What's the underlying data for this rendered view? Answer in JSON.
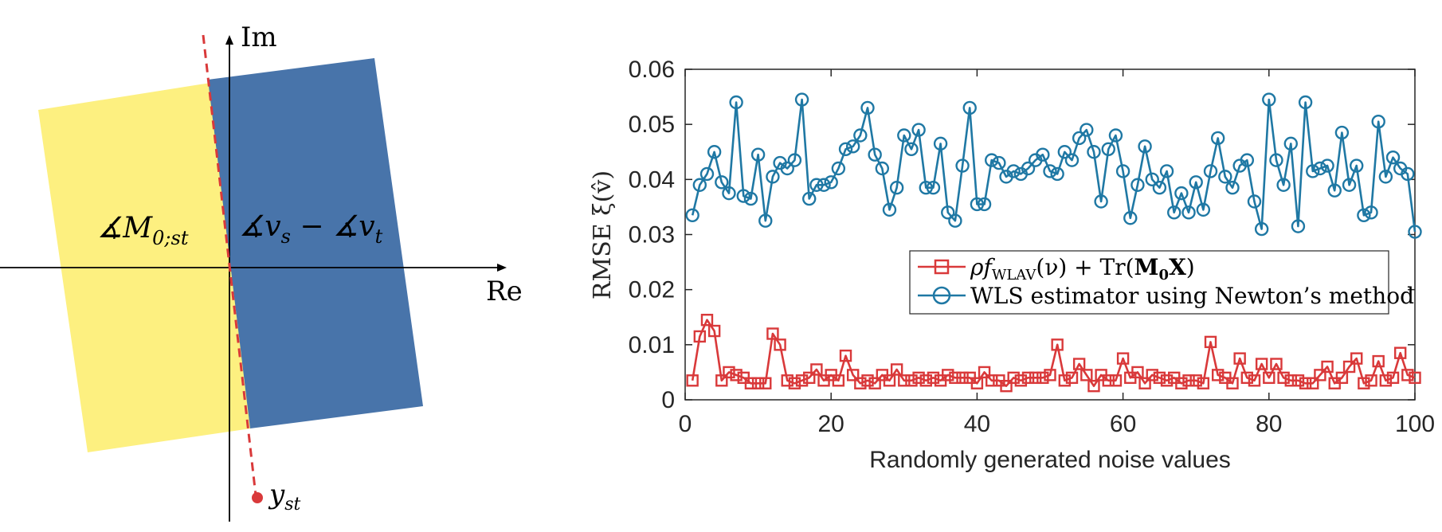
{
  "diagram": {
    "real_axis_label": "Re",
    "imag_axis_label": "Im",
    "left_region_label": "∡M",
    "left_region_sub": "0;st",
    "right_region_label": "∡v",
    "right_region_sub1": "s",
    "right_region_mid": " − ∡v",
    "right_region_sub2": "t",
    "point_label": "y",
    "point_sub": "st",
    "colors": {
      "left_region": "#fdf080",
      "right_region": "#4874aa",
      "dashed_line": "#d9393a",
      "axes": "#000000"
    }
  },
  "chart_data": {
    "type": "line",
    "xlabel": "Randomly generated noise values",
    "ylabel": "RMSE ξ(v̂)",
    "xlim": [
      0,
      100
    ],
    "ylim": [
      0,
      0.06
    ],
    "xticks": [
      0,
      20,
      40,
      60,
      80,
      100
    ],
    "yticks": [
      0,
      0.01,
      0.02,
      0.03,
      0.04,
      0.05,
      0.06
    ],
    "xtick_labels": [
      "0",
      "20",
      "40",
      "60",
      "80",
      "100"
    ],
    "ytick_labels": [
      "0",
      "0.01",
      "0.02",
      "0.03",
      "0.04",
      "0.05",
      "0.06"
    ],
    "legend_position": "center-right",
    "x": [
      1,
      2,
      3,
      4,
      5,
      6,
      7,
      8,
      9,
      10,
      11,
      12,
      13,
      14,
      15,
      16,
      17,
      18,
      19,
      20,
      21,
      22,
      23,
      24,
      25,
      26,
      27,
      28,
      29,
      30,
      31,
      32,
      33,
      34,
      35,
      36,
      37,
      38,
      39,
      40,
      41,
      42,
      43,
      44,
      45,
      46,
      47,
      48,
      49,
      50,
      51,
      52,
      53,
      54,
      55,
      56,
      57,
      58,
      59,
      60,
      61,
      62,
      63,
      64,
      65,
      66,
      67,
      68,
      69,
      70,
      71,
      72,
      73,
      74,
      75,
      76,
      77,
      78,
      79,
      80,
      81,
      82,
      83,
      84,
      85,
      86,
      87,
      88,
      89,
      90,
      91,
      92,
      93,
      94,
      95,
      96,
      97,
      98,
      99,
      100
    ],
    "series": [
      {
        "name": "ρf_WLAV(ν) + Tr(M₀X)",
        "name_parts": {
          "rho": "ρ",
          "f": "f",
          "sub": "WLAV",
          "arg": "(ν) + Tr(",
          "bold": "M",
          "bold_sub": "0",
          "boldX": "X",
          "close": ")"
        },
        "color": "#d9393a",
        "marker": "square",
        "values": [
          0.0035,
          0.0115,
          0.0145,
          0.0125,
          0.0035,
          0.005,
          0.0045,
          0.004,
          0.003,
          0.003,
          0.003,
          0.012,
          0.01,
          0.0035,
          0.003,
          0.0035,
          0.004,
          0.0055,
          0.0035,
          0.0045,
          0.0035,
          0.008,
          0.0045,
          0.003,
          0.0035,
          0.003,
          0.0045,
          0.0035,
          0.0055,
          0.0035,
          0.0035,
          0.004,
          0.0035,
          0.004,
          0.0035,
          0.0045,
          0.004,
          0.004,
          0.004,
          0.003,
          0.005,
          0.0035,
          0.0035,
          0.0025,
          0.004,
          0.0035,
          0.004,
          0.004,
          0.004,
          0.0045,
          0.01,
          0.0035,
          0.004,
          0.0065,
          0.0045,
          0.0025,
          0.0045,
          0.0035,
          0.0035,
          0.0075,
          0.004,
          0.005,
          0.003,
          0.0045,
          0.004,
          0.0035,
          0.004,
          0.003,
          0.0035,
          0.0035,
          0.003,
          0.0105,
          0.0045,
          0.004,
          0.003,
          0.0075,
          0.004,
          0.0035,
          0.0065,
          0.004,
          0.0065,
          0.004,
          0.0035,
          0.0035,
          0.003,
          0.003,
          0.0045,
          0.006,
          0.003,
          0.004,
          0.006,
          0.0075,
          0.003,
          0.0035,
          0.007,
          0.0035,
          0.004,
          0.0085,
          0.0045,
          0.004
        ]
      },
      {
        "name": "WLS estimator using Newton’s method",
        "color": "#1f78a4",
        "marker": "circle",
        "values": [
          0.0335,
          0.039,
          0.041,
          0.045,
          0.0395,
          0.0375,
          0.054,
          0.037,
          0.0365,
          0.0445,
          0.0325,
          0.0405,
          0.043,
          0.042,
          0.0435,
          0.0545,
          0.0365,
          0.039,
          0.039,
          0.0395,
          0.042,
          0.0455,
          0.046,
          0.048,
          0.053,
          0.0445,
          0.042,
          0.0345,
          0.0385,
          0.048,
          0.0455,
          0.049,
          0.0385,
          0.0385,
          0.0465,
          0.034,
          0.0325,
          0.0425,
          0.053,
          0.0355,
          0.0355,
          0.0435,
          0.043,
          0.0405,
          0.0415,
          0.041,
          0.042,
          0.0435,
          0.0445,
          0.0415,
          0.041,
          0.045,
          0.0435,
          0.0475,
          0.049,
          0.045,
          0.036,
          0.0455,
          0.048,
          0.0415,
          0.033,
          0.039,
          0.046,
          0.04,
          0.0385,
          0.0415,
          0.034,
          0.0375,
          0.034,
          0.0395,
          0.0345,
          0.0415,
          0.0475,
          0.0405,
          0.0385,
          0.0425,
          0.0435,
          0.036,
          0.031,
          0.0545,
          0.0435,
          0.039,
          0.0465,
          0.0315,
          0.054,
          0.0415,
          0.042,
          0.0425,
          0.038,
          0.0485,
          0.039,
          0.0425,
          0.0335,
          0.034,
          0.0505,
          0.0405,
          0.044,
          0.042,
          0.041,
          0.0305
        ]
      }
    ]
  }
}
